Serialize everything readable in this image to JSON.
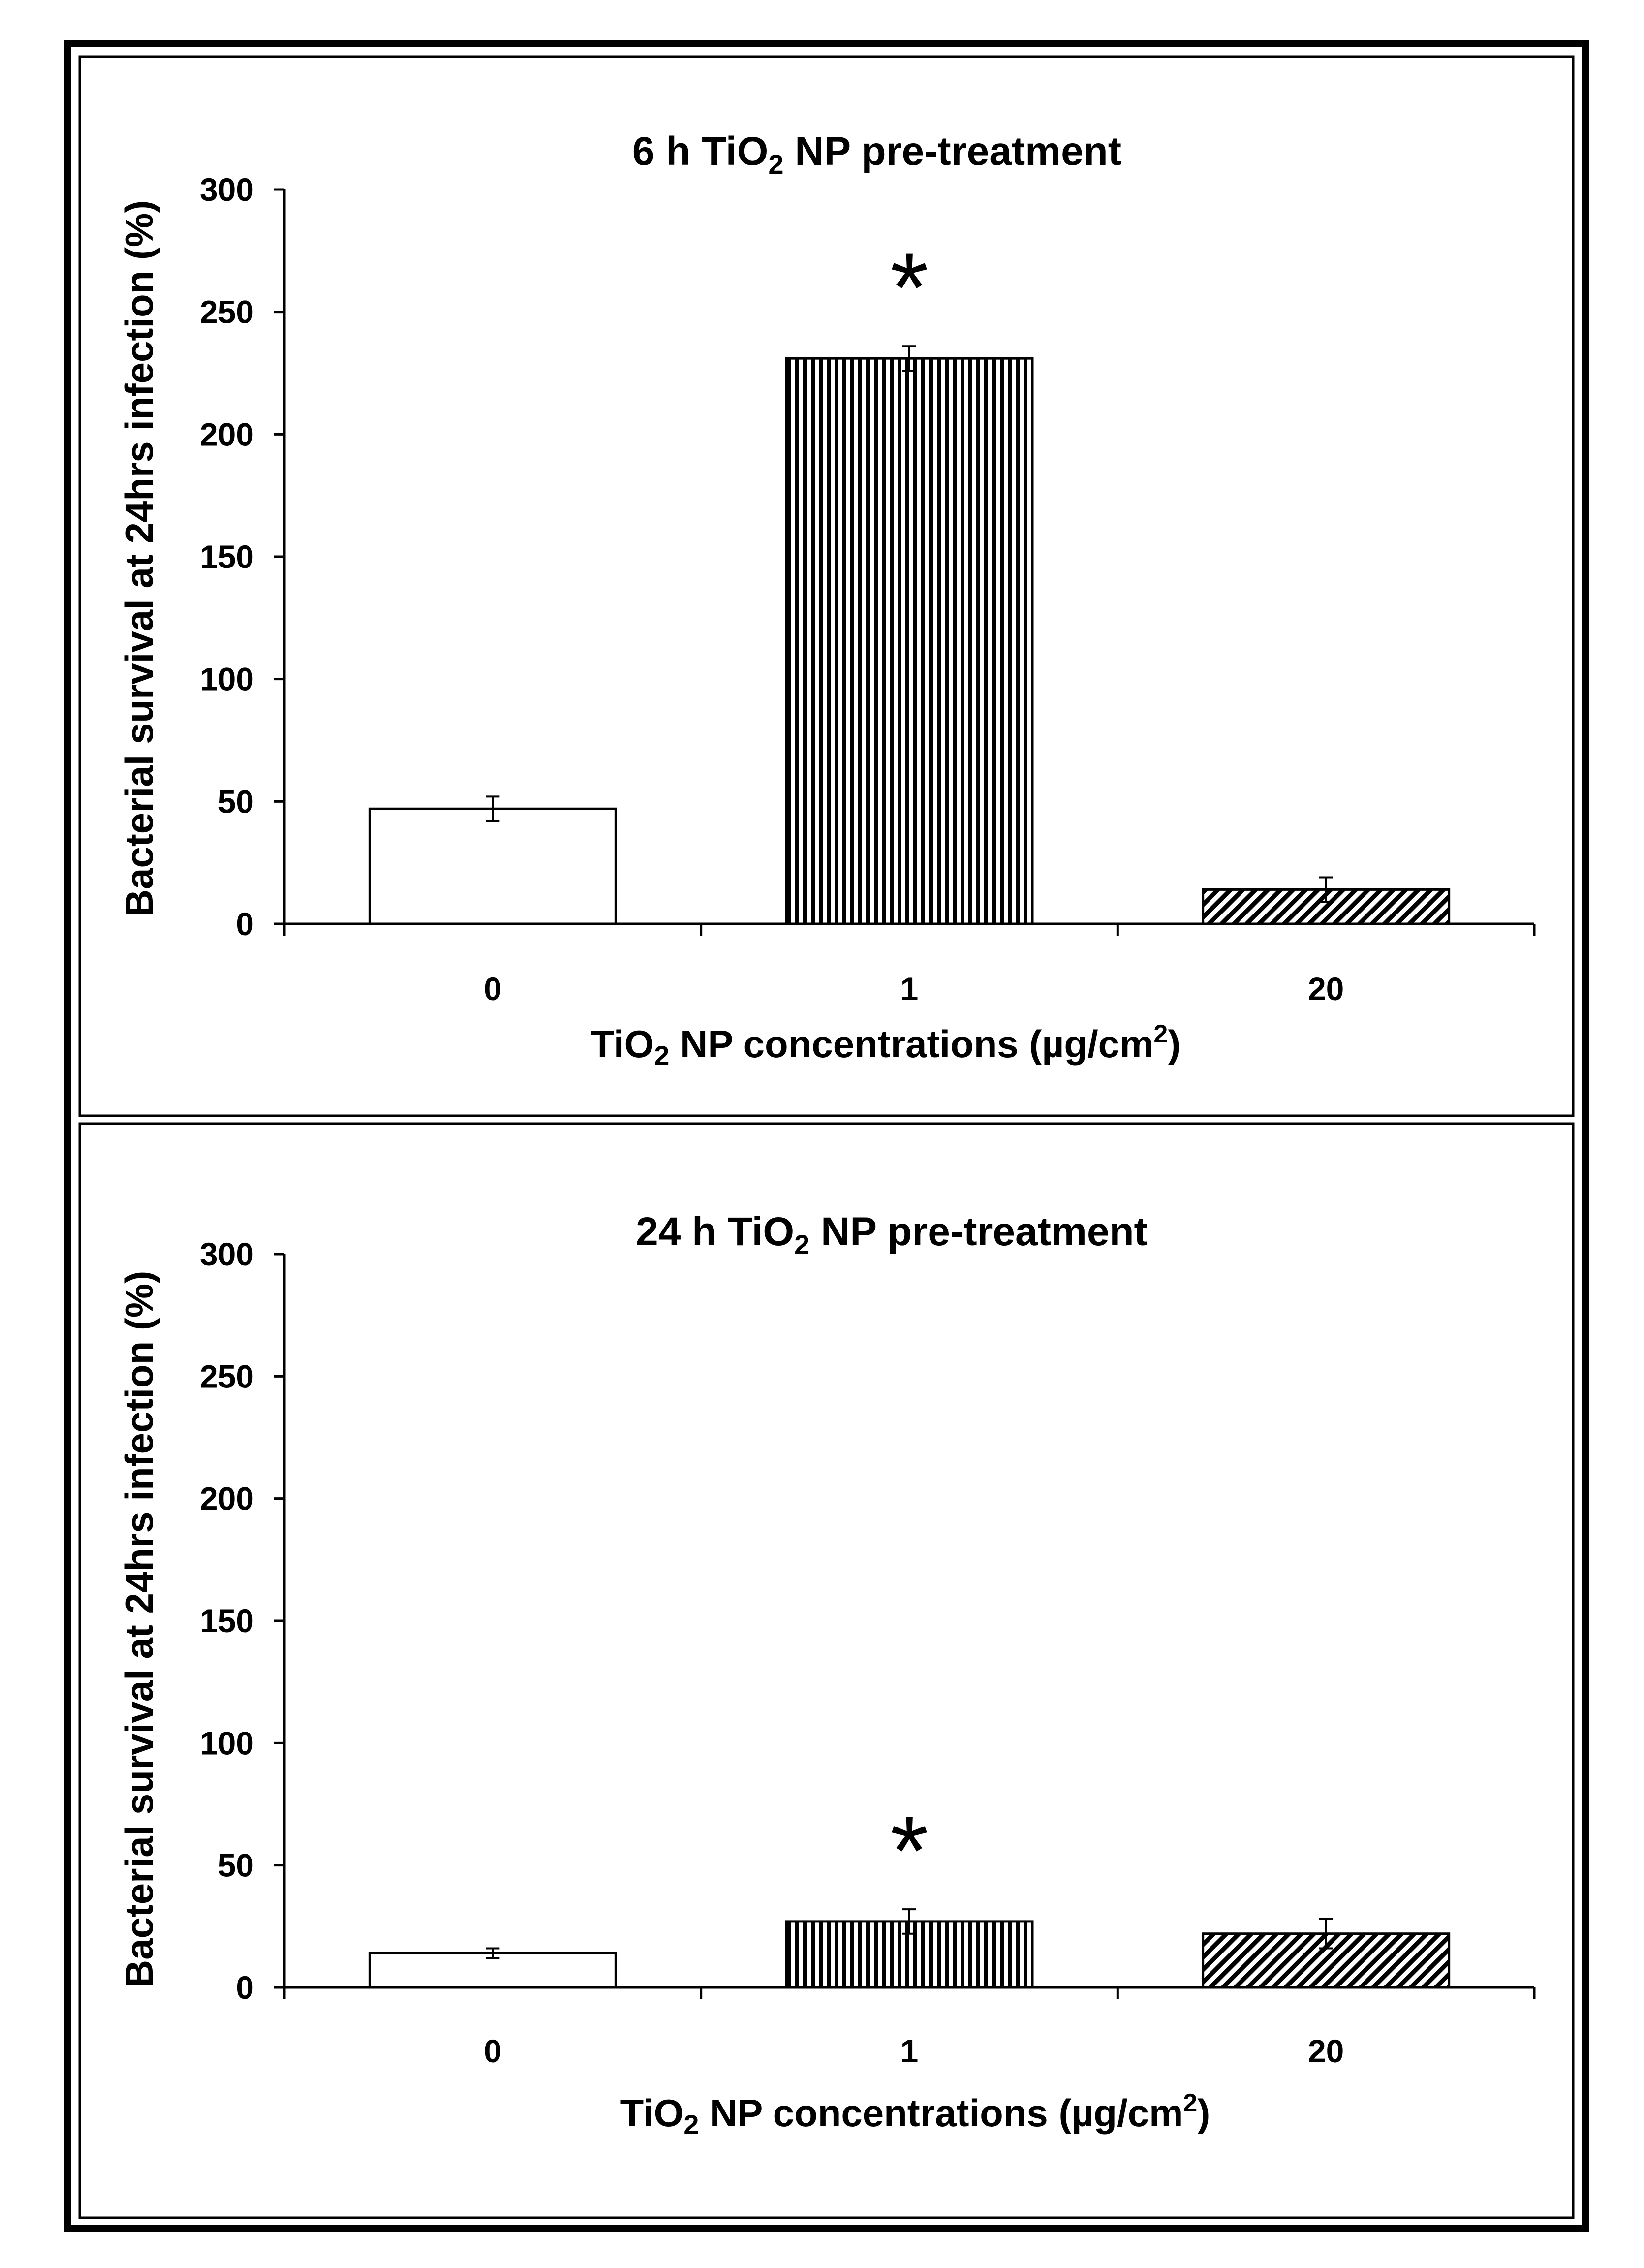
{
  "chart_data": [
    {
      "type": "bar",
      "title": "6 h TiO2 NP pre-treatment",
      "title_parts": {
        "pre": "6 h TiO",
        "sub": "2",
        "post": " NP pre-treatment"
      },
      "xlabel": "TiO2 NP concentrations (µg/cm2)",
      "xlabel_parts": {
        "pre": "TiO",
        "sub": "2",
        "mid": " NP concentrations (µg/cm",
        "sup": "2",
        "post": ")"
      },
      "ylabel": "Bacterial survival at 24hrs infection (%)",
      "ylim": [
        0,
        300
      ],
      "yticks": [
        0,
        50,
        100,
        150,
        200,
        250,
        300
      ],
      "categories": [
        "0",
        "1",
        "20"
      ],
      "values": [
        47,
        231,
        14
      ],
      "errors": [
        5,
        5,
        5
      ],
      "patterns": [
        "none",
        "vertical",
        "diagonal"
      ],
      "significance": [
        "",
        "*",
        ""
      ]
    },
    {
      "type": "bar",
      "title": "24 h TiO2 NP pre-treatment",
      "title_parts": {
        "pre": "24 h TiO",
        "sub": "2",
        "post": " NP pre-treatment"
      },
      "xlabel": "TiO2 NP concentrations (µg/cm2)",
      "xlabel_parts": {
        "pre": "TiO",
        "sub": "2",
        "mid": " NP concentrations (µg/cm",
        "sup": "2",
        "post": ")"
      },
      "ylabel": "Bacterial survival  at 24hrs infection (%)",
      "ylim": [
        0,
        300
      ],
      "yticks": [
        0,
        50,
        100,
        150,
        200,
        250,
        300
      ],
      "categories": [
        "0",
        "1",
        "20"
      ],
      "values": [
        14,
        27,
        22
      ],
      "errors": [
        2,
        5,
        6
      ],
      "patterns": [
        "none",
        "vertical",
        "diagonal"
      ],
      "significance": [
        "",
        "*",
        ""
      ]
    }
  ],
  "colors": {
    "bar_fill": "#ffffff",
    "stroke": "#000000"
  }
}
